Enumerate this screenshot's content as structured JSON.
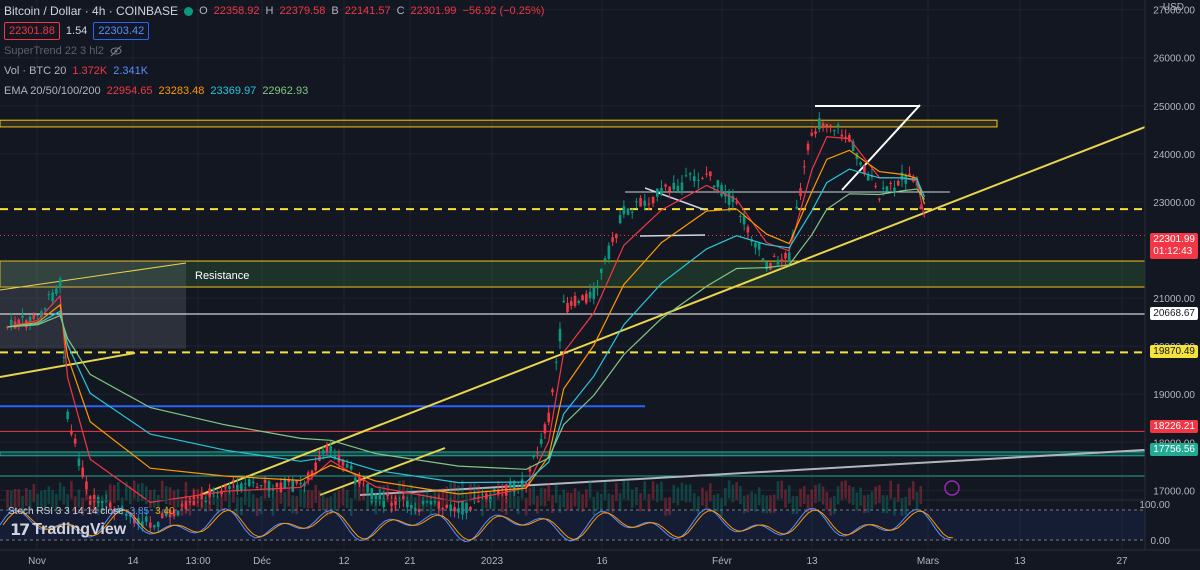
{
  "header": {
    "symbol_title": "Bitcoin / Dollar · 4h · COINBASE",
    "ohlc": {
      "o_key": "O",
      "o_val": "22358.92",
      "h_key": "H",
      "h_val": "22379.58",
      "b_key": "B",
      "b_val": "22141.57",
      "c_key": "C",
      "c_val": "22301.99",
      "change": "−56.92 (−0.25%)"
    },
    "bid": "22301.88",
    "spread": "1.54",
    "ask": "22303.42"
  },
  "indicators": {
    "supertrend": "SuperTrend 22 3 hl2",
    "vol_label": "Vol · BTC 20",
    "vol_v1": "1.372K",
    "vol_v2": "2.341K",
    "ema_label": "EMA 20/50/100/200",
    "ema20": "22954.65",
    "ema50": "23283.48",
    "ema100": "23369.97",
    "ema200": "22962.93"
  },
  "annotations": {
    "resistance": "Resistance"
  },
  "currency": "USD",
  "price_tags": {
    "last": "22301.99",
    "countdown": "01:12:43",
    "white_line": "20668.67",
    "yellow_line": "19870.49",
    "red_line": "18226.21",
    "green_line": "17756.56"
  },
  "rsi": {
    "label": "Stoch RSI 3 3 14 14 close",
    "v1": "3.85",
    "v2": "3.40"
  },
  "brand": "TradingView",
  "colors": {
    "background": "#131722",
    "up": "#089981",
    "down": "#f23645",
    "ema20": "#f23645",
    "ema50": "#ff9800",
    "ema100": "#26c6da",
    "ema200": "#81c784",
    "zone": "#f5c518",
    "trendline": "#e8d44d"
  },
  "chart_data": {
    "type": "line",
    "title": "Bitcoin / Dollar · 4h · COINBASE",
    "x_tick_labels": [
      "Nov",
      "14",
      "13:00",
      "Déc",
      "12",
      "21",
      "2023",
      "16",
      "Févr",
      "13",
      "Mars",
      "13",
      "27"
    ],
    "y_tick_labels": [
      "27000.00",
      "26000.00",
      "25000.00",
      "24000.00",
      "23000.00",
      "21000.00",
      "20000.00",
      "19000.00",
      "18000.00",
      "17000.00"
    ],
    "ylim": [
      16800,
      27200
    ],
    "series": [
      {
        "x": [
          "2022-11-01",
          "2022-11-05",
          "2022-11-08",
          "2022-11-09",
          "2022-11-12",
          "2022-11-20",
          "2022-11-30",
          "2022-12-10",
          "2022-12-14",
          "2022-12-20",
          "2022-12-31",
          "2023-01-09",
          "2023-01-12",
          "2023-01-14",
          "2023-01-18",
          "2023-01-22",
          "2023-01-27",
          "2023-02-02",
          "2023-02-06",
          "2023-02-10",
          "2023-02-13",
          "2023-02-16",
          "2023-02-18",
          "2023-02-21",
          "2023-02-25",
          "2023-02-28",
          "2023-03-02",
          "2023-03-03"
        ],
        "values": [
          20400,
          20600,
          21300,
          18500,
          16800,
          16300,
          17100,
          17100,
          17900,
          16800,
          16600,
          17200,
          18500,
          20800,
          21100,
          22800,
          23200,
          23600,
          22900,
          21700,
          21900,
          24500,
          24700,
          24300,
          23100,
          23500,
          23400,
          22300
        ]
      }
    ],
    "stoch_rsi": {
      "k": 3.85,
      "d": 3.4,
      "ylim": [
        0,
        100
      ],
      "y_tick_labels": [
        "100.00",
        "0.00"
      ]
    },
    "horizontal_levels": [
      20668.67,
      19870.49,
      18226.21,
      17756.56,
      22301.99
    ]
  }
}
